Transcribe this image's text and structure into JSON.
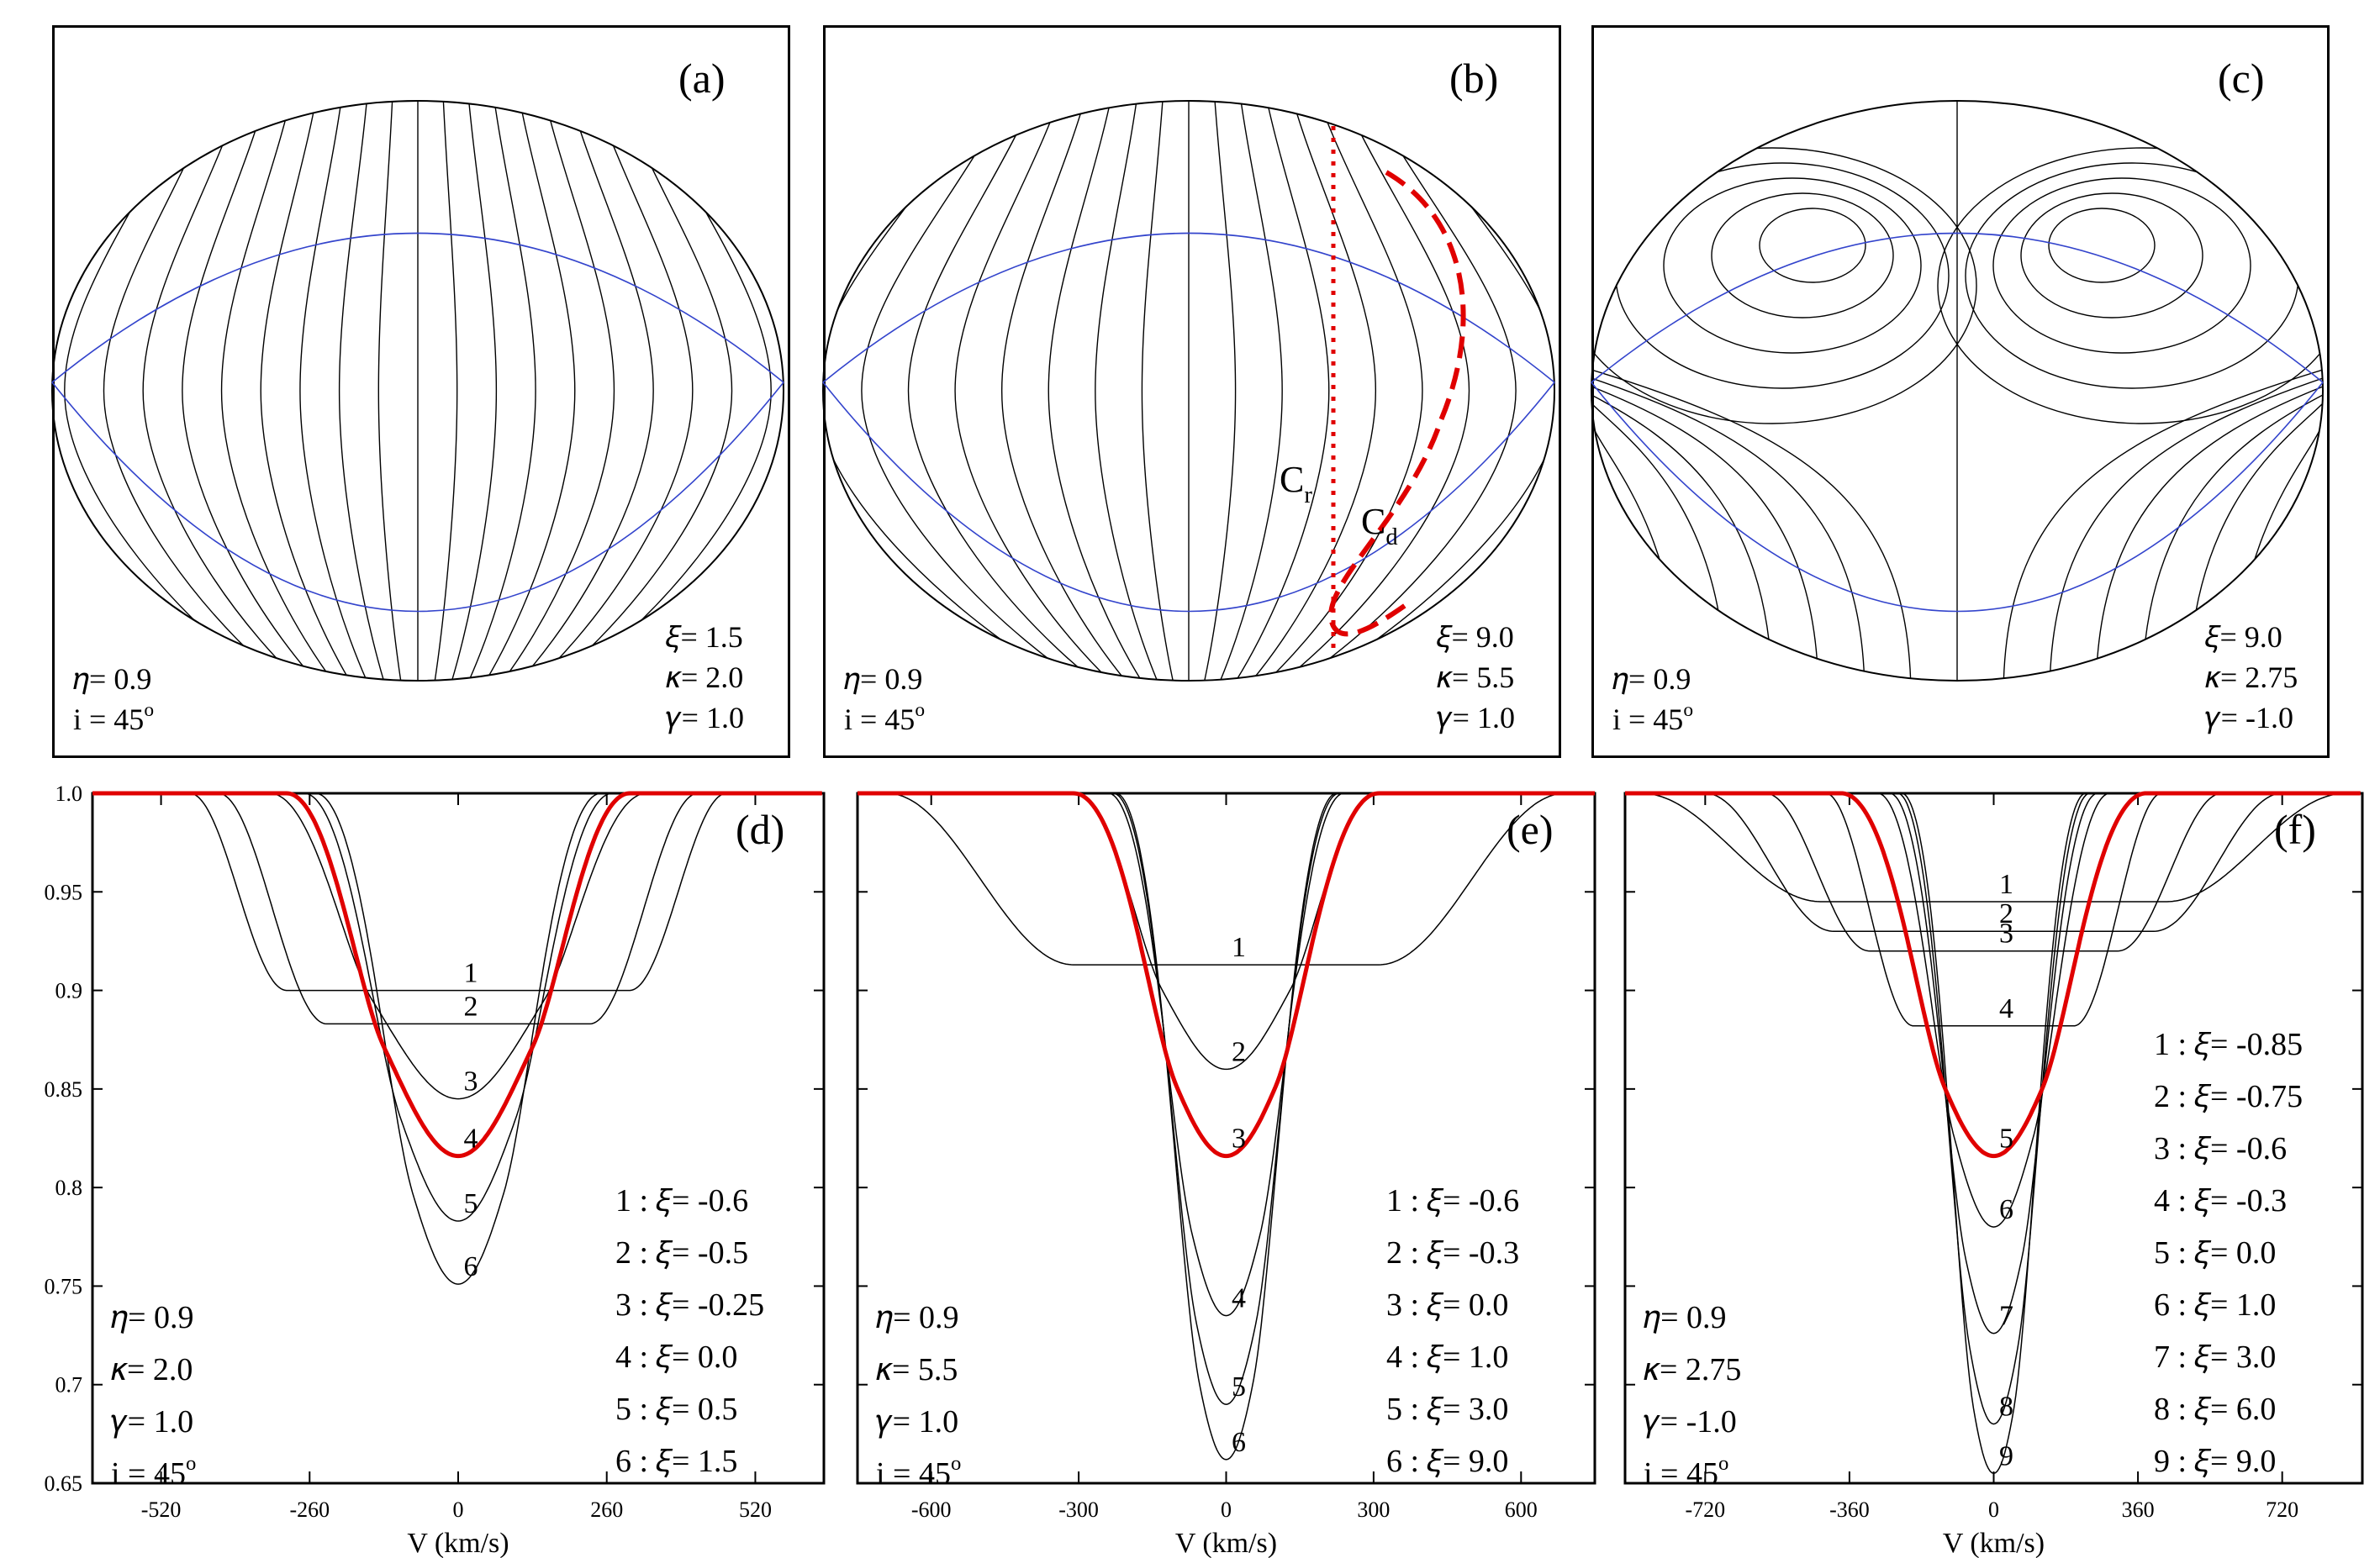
{
  "chart_data": [
    {
      "panel": "(a)",
      "type": "other",
      "description_params": {
        "eta": "0.9",
        "i": "45",
        "xi": "1.5",
        "kappa": "2.0",
        "gamma": "1.0"
      },
      "labels": {
        "eta": "𝜂= 0.9",
        "i": "i = 45",
        "xi": "𝜉= 1.5",
        "kappa": "𝜅= 2.0",
        "gamma": "𝛾= 1.0"
      },
      "line_count": 18
    },
    {
      "panel": "(b)",
      "type": "other",
      "labels": {
        "eta": "𝜂= 0.9",
        "i": "i = 45",
        "xi": "𝜉= 9.0",
        "kappa": "𝜅= 5.5",
        "gamma": "𝛾= 1.0",
        "cr": "C",
        "cr_sub": "r",
        "cd": "C",
        "cd_sub": "d"
      },
      "line_count": 18
    },
    {
      "panel": "(c)",
      "type": "other",
      "labels": {
        "eta": "𝜂= 0.9",
        "i": "i = 45",
        "xi": "𝜉= 9.0",
        "kappa": "𝜅= 2.75",
        "gamma": "𝛾= -1.0"
      }
    },
    {
      "panel": "(d)",
      "type": "line",
      "xlabel": "V (km/s)",
      "ylim": [
        0.65,
        1.0
      ],
      "xlim": [
        -640,
        640
      ],
      "xticks": [
        -520,
        -260,
        0,
        260,
        520
      ],
      "yticks": [
        "0.65",
        "0.7",
        "0.75",
        "0.8",
        "0.85",
        "0.9",
        "0.95",
        "1.0"
      ],
      "params": [
        "𝜂= 0.9",
        "𝜅= 2.0",
        "𝛾= 1.0",
        "i = 45"
      ],
      "legend": [
        "1 : 𝜉= -0.6",
        "2 : 𝜉= -0.5",
        "3 : 𝜉= -0.25",
        "4 : 𝜉= 0.0",
        "5 : 𝜉= 0.5",
        "6 : 𝜉= 1.5"
      ],
      "series": [
        {
          "name": "1",
          "depth": 0.9,
          "halfwidth": 470,
          "edge": 170,
          "highlight": false
        },
        {
          "name": "2",
          "depth": 0.883,
          "halfwidth": 420,
          "edge": 190,
          "highlight": false
        },
        {
          "name": "3",
          "depth": 0.845,
          "halfwidth": 330,
          "edge": 180,
          "highlight": false
        },
        {
          "name": "4",
          "depth": 0.816,
          "halfwidth": 300,
          "edge": 170,
          "highlight": true
        },
        {
          "name": "5",
          "depth": 0.783,
          "halfwidth": 270,
          "edge": 170,
          "highlight": false
        },
        {
          "name": "6",
          "depth": 0.751,
          "halfwidth": 250,
          "edge": 170,
          "highlight": false
        }
      ]
    },
    {
      "panel": "(e)",
      "type": "line",
      "xlabel": "V (km/s)",
      "ylim": [
        0.65,
        1.0
      ],
      "xlim": [
        -750,
        750
      ],
      "xticks": [
        -600,
        -300,
        0,
        300,
        600
      ],
      "yticks": [
        "0.65",
        "0.7",
        "0.75",
        "0.8",
        "0.85",
        "0.9",
        "0.95",
        "1.0"
      ],
      "params": [
        "𝜂= 0.9",
        "𝜅= 5.5",
        "𝛾= 1.0",
        "i = 45"
      ],
      "legend": [
        "1 : 𝜉= -0.6",
        "2 : 𝜉= -0.3",
        "3 : 𝜉= 0.0",
        "4 : 𝜉= 1.0",
        "5 : 𝜉= 3.0",
        "6 : 𝜉= 9.0"
      ],
      "series": [
        {
          "name": "1",
          "depth": 0.913,
          "halfwidth": 690,
          "edge": 380,
          "highlight": false
        },
        {
          "name": "2",
          "depth": 0.86,
          "halfwidth": 310,
          "edge": 180,
          "highlight": false
        },
        {
          "name": "3",
          "depth": 0.816,
          "halfwidth": 310,
          "edge": 210,
          "highlight": true
        },
        {
          "name": "4",
          "depth": 0.735,
          "halfwidth": 240,
          "edge": 170,
          "highlight": false
        },
        {
          "name": "5",
          "depth": 0.69,
          "halfwidth": 230,
          "edge": 170,
          "highlight": false
        },
        {
          "name": "6",
          "depth": 0.662,
          "halfwidth": 225,
          "edge": 170,
          "highlight": false
        }
      ]
    },
    {
      "panel": "(f)",
      "type": "line",
      "xlabel": "V (km/s)",
      "ylim": [
        0.65,
        1.0
      ],
      "xlim": [
        -920,
        920
      ],
      "xticks": [
        -720,
        -360,
        0,
        360,
        720
      ],
      "yticks": [
        "0.65",
        "0.7",
        "0.75",
        "0.8",
        "0.85",
        "0.9",
        "0.95",
        "1.0"
      ],
      "params": [
        "𝜂= 0.9",
        "𝜅= 2.75",
        "𝛾= -1.0",
        "i = 45"
      ],
      "legend": [
        "1 : 𝜉= -0.85",
        "2 : 𝜉= -0.75",
        "3 : 𝜉= -0.6",
        "4 : 𝜉= -0.3",
        "5 : 𝜉= 0.0",
        "6 : 𝜉= 1.0",
        "7 : 𝜉= 3.0",
        "8 : 𝜉= 6.0",
        "9 : 𝜉= 9.0"
      ],
      "series": [
        {
          "name": "1",
          "depth": 0.945,
          "halfwidth": 880,
          "edge": 450,
          "highlight": false
        },
        {
          "name": "2",
          "depth": 0.93,
          "halfwidth": 720,
          "edge": 320,
          "highlight": false
        },
        {
          "name": "3",
          "depth": 0.92,
          "halfwidth": 570,
          "edge": 260,
          "highlight": false
        },
        {
          "name": "4",
          "depth": 0.882,
          "halfwidth": 420,
          "edge": 220,
          "highlight": false
        },
        {
          "name": "5",
          "depth": 0.816,
          "halfwidth": 380,
          "edge": 260,
          "highlight": true
        },
        {
          "name": "6",
          "depth": 0.78,
          "halfwidth": 290,
          "edge": 190,
          "highlight": false
        },
        {
          "name": "7",
          "depth": 0.726,
          "halfwidth": 260,
          "edge": 190,
          "highlight": false
        },
        {
          "name": "8",
          "depth": 0.68,
          "halfwidth": 240,
          "edge": 180,
          "highlight": false
        },
        {
          "name": "9",
          "depth": 0.655,
          "halfwidth": 230,
          "edge": 180,
          "highlight": false
        }
      ]
    }
  ],
  "panel_tags": {
    "a": "(a)",
    "b": "(b)",
    "c": "(c)",
    "d": "(d)",
    "e": "(e)",
    "f": "(f)"
  },
  "colors": {
    "ink": "#000000",
    "equator": "#3344cc",
    "highlight": "#e00000"
  }
}
